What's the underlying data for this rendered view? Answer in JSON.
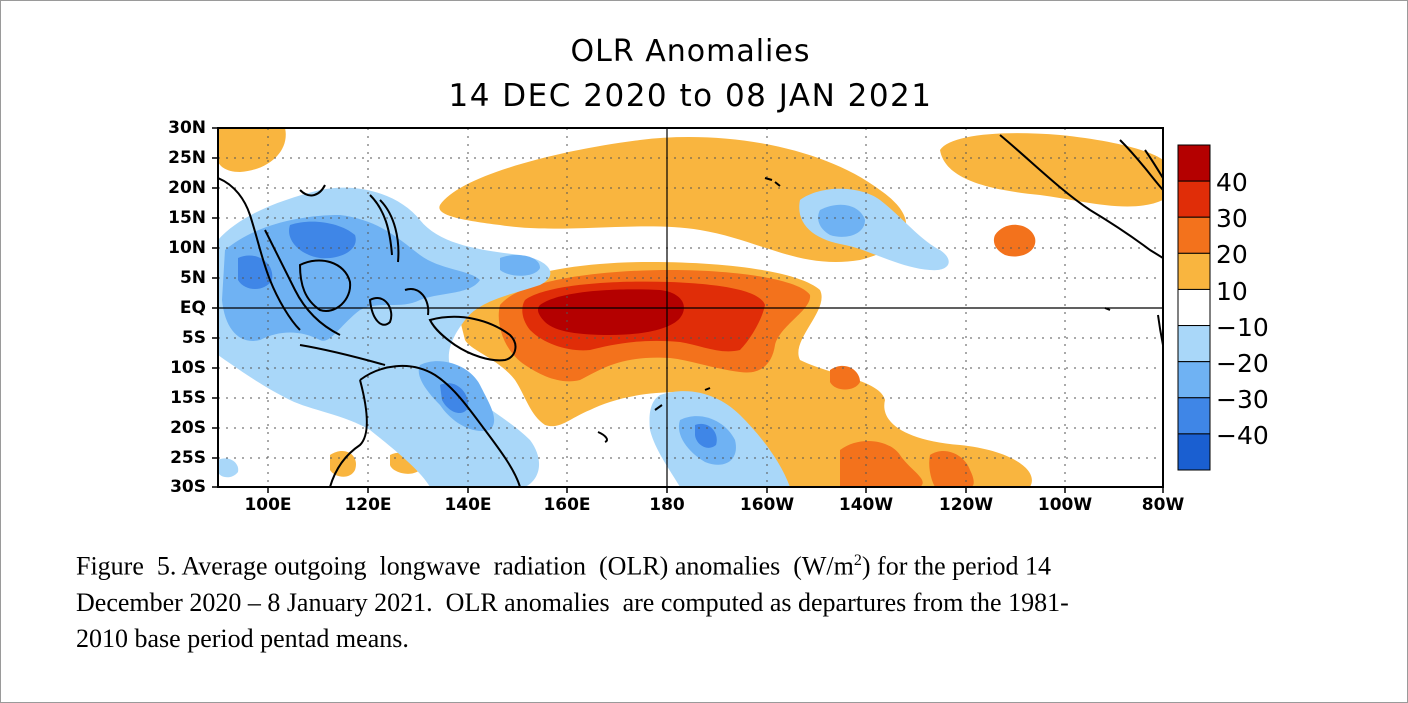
{
  "title": "OLR Anomalies",
  "subtitle": "14 DEC 2020 to 08 JAN 2021",
  "lat_labels": [
    "30N",
    "25N",
    "20N",
    "15N",
    "10N",
    "5N",
    "EQ",
    "5S",
    "10S",
    "15S",
    "20S",
    "25S",
    "30S"
  ],
  "lon_labels": [
    "100E",
    "120E",
    "140E",
    "160E",
    "180",
    "160W",
    "140W",
    "120W",
    "100W",
    "80W"
  ],
  "colorbar": {
    "labels": [
      "40",
      "30",
      "20",
      "10",
      "−10",
      "−20",
      "−30",
      "−40"
    ],
    "colors": [
      "#b40000",
      "#e02d08",
      "#f3721c",
      "#f9b53f",
      "#ffffff",
      "#a9d7f9",
      "#6fb2f3",
      "#3f86e7",
      "#1a5fd1"
    ]
  },
  "caption": {
    "line1": "Figure  5. Average outgoing  longwave  radiation  (OLR) anomalies  (W/m",
    "sup": "2",
    "line1_end": ") for the period 14",
    "line2": "December 2020 – 8 January 2021.  OLR anomalies  are computed as departures from the 1981-",
    "line3": "2010 base period pentad means."
  }
}
